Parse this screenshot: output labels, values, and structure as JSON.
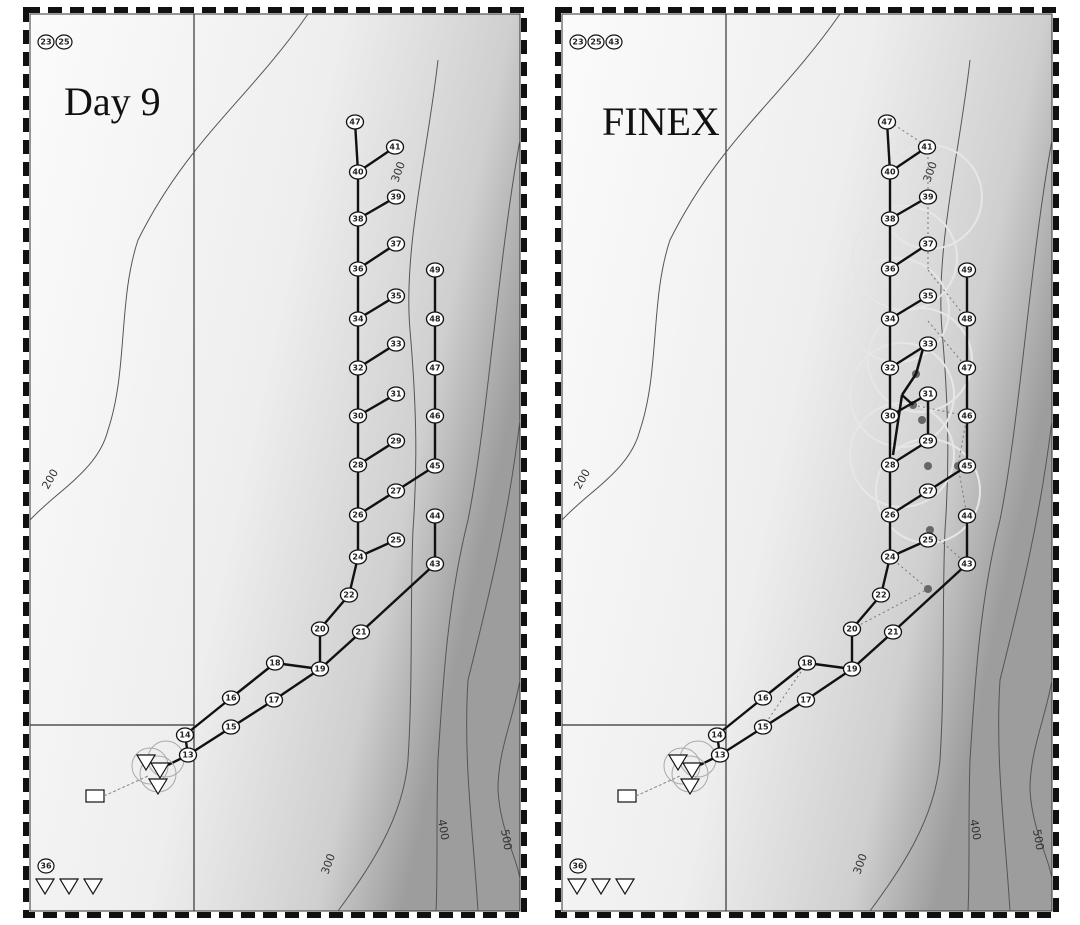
{
  "panels": [
    {
      "id": "left",
      "label": "Day 9",
      "corner_badges_top": [
        "23",
        "25"
      ],
      "corner_badge_bottom": "36",
      "show_finex_overlay": false
    },
    {
      "id": "right",
      "label": "FINEX",
      "corner_badges_top": [
        "23",
        "25",
        "43"
      ],
      "corner_badge_bottom": "36",
      "show_finex_overlay": true
    }
  ],
  "contour_labels": [
    "200",
    "300",
    "300",
    "400",
    "500"
  ],
  "nodes": [
    {
      "id": "47",
      "label": "47"
    },
    {
      "id": "41",
      "label": "41"
    },
    {
      "id": "40",
      "label": "40"
    },
    {
      "id": "39",
      "label": "39"
    },
    {
      "id": "38",
      "label": "38"
    },
    {
      "id": "37",
      "label": "37"
    },
    {
      "id": "36",
      "label": "36"
    },
    {
      "id": "35",
      "label": "35"
    },
    {
      "id": "34",
      "label": "34"
    },
    {
      "id": "33",
      "label": "33"
    },
    {
      "id": "32",
      "label": "32"
    },
    {
      "id": "31",
      "label": "31"
    },
    {
      "id": "30",
      "label": "30"
    },
    {
      "id": "29",
      "label": "29"
    },
    {
      "id": "28",
      "label": "28"
    },
    {
      "id": "27",
      "label": "27"
    },
    {
      "id": "26",
      "label": "26"
    },
    {
      "id": "25",
      "label": "25"
    },
    {
      "id": "24",
      "label": "24"
    },
    {
      "id": "22",
      "label": "22"
    },
    {
      "id": "21",
      "label": "21"
    },
    {
      "id": "20",
      "label": "20"
    },
    {
      "id": "19",
      "label": "19"
    },
    {
      "id": "18",
      "label": "18"
    },
    {
      "id": "17",
      "label": "17"
    },
    {
      "id": "16",
      "label": "16"
    },
    {
      "id": "15",
      "label": "15"
    },
    {
      "id": "14",
      "label": "14"
    },
    {
      "id": "13",
      "label": "13"
    },
    {
      "id": "49",
      "label": "49"
    },
    {
      "id": "48",
      "label": "48"
    },
    {
      "id": "47b",
      "label": "47"
    },
    {
      "id": "46",
      "label": "46"
    },
    {
      "id": "45",
      "label": "45"
    },
    {
      "id": "44",
      "label": "44"
    },
    {
      "id": "43",
      "label": "43"
    }
  ],
  "colors": {
    "track": "#111111",
    "contour": "#555555",
    "node_fill": "#ffffff",
    "overlay_circle": "#e6e6e6",
    "overlay_dot": "#666666"
  }
}
